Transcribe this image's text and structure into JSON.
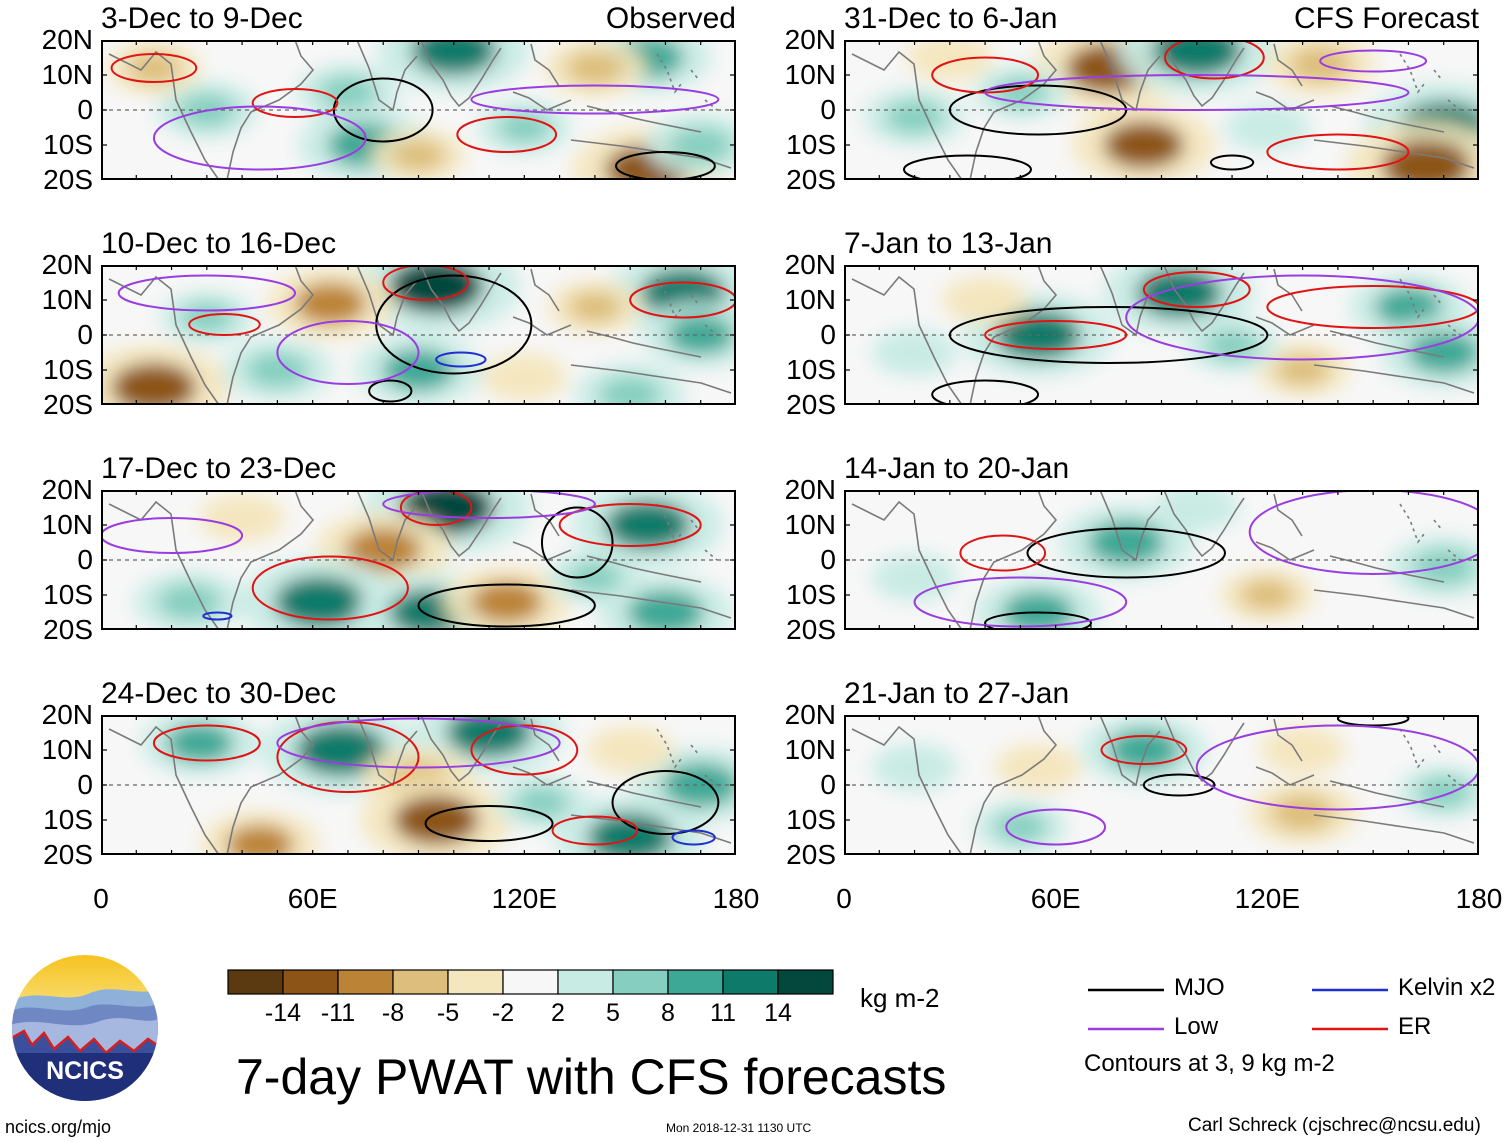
{
  "chart_data": {
    "type": "heatmap",
    "title": "7-day PWAT with CFS forecasts",
    "units": "kg m-2",
    "x_axis": {
      "range": [
        0,
        180
      ],
      "ticks": [
        "0",
        "60E",
        "120E",
        "180"
      ]
    },
    "y_axis": {
      "range": [
        -20,
        20
      ],
      "ticks": [
        "20N",
        "10N",
        "0",
        "10S",
        "20S"
      ]
    },
    "colorbar": {
      "colors": [
        "#5b3a12",
        "#8c5416",
        "#bb8336",
        "#ddbe7c",
        "#f4e6bd",
        "#f7f7f7",
        "#c8ebe4",
        "#86cfc0",
        "#3ea896",
        "#0e7a6a",
        "#04473d"
      ],
      "labels": [
        "-14",
        "-11",
        "-8",
        "-5",
        "-2",
        "2",
        "5",
        "8",
        "11",
        "14"
      ]
    },
    "panels": [
      {
        "period": "3-Dec to 9-Dec",
        "source": "Observed",
        "blobs": [
          {
            "lon": 75,
            "lat": -10,
            "v": 10
          },
          {
            "lon": 100,
            "lat": 17,
            "v": 12
          },
          {
            "lon": 155,
            "lat": 15,
            "v": 9
          },
          {
            "lon": 30,
            "lat": 0,
            "v": 6
          },
          {
            "lon": 70,
            "lat": 5,
            "v": 6
          },
          {
            "lon": 140,
            "lat": 12,
            "v": -6
          },
          {
            "lon": 90,
            "lat": -13,
            "v": -5
          },
          {
            "lon": 155,
            "lat": -17,
            "v": -12
          },
          {
            "lon": 170,
            "lat": -10,
            "v": 7
          },
          {
            "lon": 120,
            "lat": -5,
            "v": 5
          },
          {
            "lon": 15,
            "lat": 12,
            "v": -5
          }
        ],
        "contours": [
          {
            "type": "MJO",
            "lon": 80,
            "lat": 0,
            "rx": 14,
            "ry": 9
          },
          {
            "type": "MJO",
            "lon": 160,
            "lat": -16,
            "rx": 14,
            "ry": 4
          },
          {
            "type": "ER",
            "lon": 15,
            "lat": 12,
            "rx": 12,
            "ry": 4
          },
          {
            "type": "ER",
            "lon": 55,
            "lat": 2,
            "rx": 12,
            "ry": 4
          },
          {
            "type": "ER",
            "lon": 115,
            "lat": -7,
            "rx": 14,
            "ry": 5
          },
          {
            "type": "Low",
            "lon": 45,
            "lat": -8,
            "rx": 30,
            "ry": 9
          },
          {
            "type": "Low",
            "lon": 140,
            "lat": 3,
            "rx": 35,
            "ry": 4
          }
        ]
      },
      {
        "period": "10-Dec to 16-Dec",
        "source": "",
        "blobs": [
          {
            "lon": 95,
            "lat": 14,
            "v": 14
          },
          {
            "lon": 165,
            "lat": 12,
            "v": 12
          },
          {
            "lon": 65,
            "lat": 9,
            "v": -9
          },
          {
            "lon": 15,
            "lat": -15,
            "v": -12
          },
          {
            "lon": 50,
            "lat": -10,
            "v": 7
          },
          {
            "lon": 90,
            "lat": -10,
            "v": 9
          },
          {
            "lon": 170,
            "lat": 0,
            "v": 8
          },
          {
            "lon": 140,
            "lat": 8,
            "v": -5
          },
          {
            "lon": 120,
            "lat": -12,
            "v": -4
          },
          {
            "lon": 30,
            "lat": 5,
            "v": 5
          },
          {
            "lon": 150,
            "lat": -17,
            "v": 7
          }
        ],
        "contours": [
          {
            "type": "MJO",
            "lon": 100,
            "lat": 3,
            "rx": 22,
            "ry": 14
          },
          {
            "type": "MJO",
            "lon": 82,
            "lat": -16,
            "rx": 6,
            "ry": 3
          },
          {
            "type": "ER",
            "lon": 92,
            "lat": 15,
            "rx": 12,
            "ry": 5
          },
          {
            "type": "ER",
            "lon": 165,
            "lat": 10,
            "rx": 15,
            "ry": 5
          },
          {
            "type": "ER",
            "lon": 35,
            "lat": 3,
            "rx": 10,
            "ry": 3
          },
          {
            "type": "Low",
            "lon": 30,
            "lat": 12,
            "rx": 25,
            "ry": 5
          },
          {
            "type": "Low",
            "lon": 70,
            "lat": -5,
            "rx": 20,
            "ry": 9
          },
          {
            "type": "Kelvin x2",
            "lon": 102,
            "lat": -7,
            "rx": 7,
            "ry": 2
          }
        ]
      },
      {
        "period": "17-Dec to 23-Dec",
        "source": "",
        "blobs": [
          {
            "lon": 98,
            "lat": 15,
            "v": 14
          },
          {
            "lon": 155,
            "lat": 10,
            "v": 12
          },
          {
            "lon": 80,
            "lat": 3,
            "v": -10
          },
          {
            "lon": 62,
            "lat": -12,
            "v": 13
          },
          {
            "lon": 93,
            "lat": -15,
            "v": 11
          },
          {
            "lon": 115,
            "lat": -12,
            "v": -9
          },
          {
            "lon": 160,
            "lat": -15,
            "v": 10
          },
          {
            "lon": 25,
            "lat": -12,
            "v": 7
          },
          {
            "lon": 140,
            "lat": -5,
            "v": 5
          },
          {
            "lon": 40,
            "lat": 12,
            "v": -4
          }
        ],
        "contours": [
          {
            "type": "MJO",
            "lon": 115,
            "lat": -13,
            "rx": 25,
            "ry": 6
          },
          {
            "type": "MJO",
            "lon": 135,
            "lat": 5,
            "rx": 10,
            "ry": 10
          },
          {
            "type": "ER",
            "lon": 65,
            "lat": -8,
            "rx": 22,
            "ry": 9
          },
          {
            "type": "ER",
            "lon": 150,
            "lat": 10,
            "rx": 20,
            "ry": 6
          },
          {
            "type": "ER",
            "lon": 95,
            "lat": 15,
            "rx": 10,
            "ry": 5
          },
          {
            "type": "Low",
            "lon": 20,
            "lat": 7,
            "rx": 20,
            "ry": 5
          },
          {
            "type": "Low",
            "lon": 110,
            "lat": 16,
            "rx": 30,
            "ry": 4
          },
          {
            "type": "Kelvin x2",
            "lon": 33,
            "lat": -16,
            "rx": 4,
            "ry": 1
          }
        ]
      },
      {
        "period": "24-Dec to 30-Dec",
        "source": "",
        "blobs": [
          {
            "lon": 68,
            "lat": 10,
            "v": 13
          },
          {
            "lon": 110,
            "lat": 15,
            "v": 12
          },
          {
            "lon": 28,
            "lat": 12,
            "v": 8
          },
          {
            "lon": 90,
            "lat": 2,
            "v": -7
          },
          {
            "lon": 95,
            "lat": -10,
            "v": -12
          },
          {
            "lon": 150,
            "lat": -15,
            "v": 12
          },
          {
            "lon": 170,
            "lat": 0,
            "v": 10
          },
          {
            "lon": 45,
            "lat": -17,
            "v": -8
          },
          {
            "lon": 125,
            "lat": -5,
            "v": 5
          },
          {
            "lon": 150,
            "lat": 10,
            "v": -4
          }
        ],
        "contours": [
          {
            "type": "MJO",
            "lon": 110,
            "lat": -11,
            "rx": 18,
            "ry": 5
          },
          {
            "type": "MJO",
            "lon": 160,
            "lat": -5,
            "rx": 15,
            "ry": 9
          },
          {
            "type": "ER",
            "lon": 70,
            "lat": 8,
            "rx": 20,
            "ry": 10
          },
          {
            "type": "ER",
            "lon": 30,
            "lat": 12,
            "rx": 15,
            "ry": 5
          },
          {
            "type": "ER",
            "lon": 120,
            "lat": 10,
            "rx": 15,
            "ry": 7
          },
          {
            "type": "ER",
            "lon": 140,
            "lat": -13,
            "rx": 12,
            "ry": 4
          },
          {
            "type": "Low",
            "lon": 90,
            "lat": 12,
            "rx": 40,
            "ry": 7
          },
          {
            "type": "Kelvin x2",
            "lon": 168,
            "lat": -15,
            "rx": 6,
            "ry": 2
          }
        ]
      },
      {
        "period": "31-Dec to 6-Jan",
        "source": "CFS Forecast",
        "blobs": [
          {
            "lon": 75,
            "lat": 12,
            "v": -12
          },
          {
            "lon": 100,
            "lat": 17,
            "v": 13
          },
          {
            "lon": 170,
            "lat": -5,
            "v": 13
          },
          {
            "lon": 85,
            "lat": -10,
            "v": -11
          },
          {
            "lon": 165,
            "lat": -16,
            "v": -13
          },
          {
            "lon": 135,
            "lat": 13,
            "v": -7
          },
          {
            "lon": 20,
            "lat": -2,
            "v": 6
          },
          {
            "lon": 50,
            "lat": 5,
            "v": 5
          },
          {
            "lon": 120,
            "lat": -5,
            "v": 4
          },
          {
            "lon": 30,
            "lat": 15,
            "v": -4
          }
        ],
        "contours": [
          {
            "type": "MJO",
            "lon": 55,
            "lat": 0,
            "rx": 25,
            "ry": 7
          },
          {
            "type": "MJO",
            "lon": 35,
            "lat": -17,
            "rx": 18,
            "ry": 4
          },
          {
            "type": "MJO",
            "lon": 110,
            "lat": -15,
            "rx": 6,
            "ry": 2
          },
          {
            "type": "ER",
            "lon": 105,
            "lat": 15,
            "rx": 14,
            "ry": 6
          },
          {
            "type": "ER",
            "lon": 40,
            "lat": 10,
            "rx": 15,
            "ry": 5
          },
          {
            "type": "ER",
            "lon": 140,
            "lat": -12,
            "rx": 20,
            "ry": 5
          },
          {
            "type": "Low",
            "lon": 100,
            "lat": 5,
            "rx": 60,
            "ry": 5
          },
          {
            "type": "Low",
            "lon": 150,
            "lat": 14,
            "rx": 15,
            "ry": 3
          }
        ]
      },
      {
        "period": "7-Jan to 13-Jan",
        "source": "",
        "blobs": [
          {
            "lon": 55,
            "lat": 0,
            "v": 12
          },
          {
            "lon": 95,
            "lat": 12,
            "v": 12
          },
          {
            "lon": 160,
            "lat": 8,
            "v": 8
          },
          {
            "lon": 170,
            "lat": -5,
            "v": 9
          },
          {
            "lon": 130,
            "lat": -10,
            "v": -5
          },
          {
            "lon": 40,
            "lat": 10,
            "v": -4
          },
          {
            "lon": 20,
            "lat": -5,
            "v": 4
          },
          {
            "lon": 110,
            "lat": -3,
            "v": 5
          }
        ],
        "contours": [
          {
            "type": "MJO",
            "lon": 75,
            "lat": 0,
            "rx": 45,
            "ry": 8
          },
          {
            "type": "MJO",
            "lon": 40,
            "lat": -17,
            "rx": 15,
            "ry": 4
          },
          {
            "type": "ER",
            "lon": 60,
            "lat": 0,
            "rx": 20,
            "ry": 4
          },
          {
            "type": "ER",
            "lon": 100,
            "lat": 13,
            "rx": 15,
            "ry": 5
          },
          {
            "type": "ER",
            "lon": 150,
            "lat": 8,
            "rx": 30,
            "ry": 6
          },
          {
            "type": "Low",
            "lon": 130,
            "lat": 5,
            "rx": 50,
            "ry": 12
          }
        ]
      },
      {
        "period": "14-Jan to 20-Jan",
        "source": "",
        "blobs": [
          {
            "lon": 80,
            "lat": 5,
            "v": 10
          },
          {
            "lon": 55,
            "lat": -15,
            "v": 9
          },
          {
            "lon": 170,
            "lat": -2,
            "v": 7
          },
          {
            "lon": 120,
            "lat": -10,
            "v": -5
          },
          {
            "lon": 20,
            "lat": -5,
            "v": 4
          },
          {
            "lon": 100,
            "lat": 15,
            "v": 4
          }
        ],
        "contours": [
          {
            "type": "MJO",
            "lon": 80,
            "lat": 2,
            "rx": 28,
            "ry": 7
          },
          {
            "type": "MJO",
            "lon": 55,
            "lat": -18,
            "rx": 15,
            "ry": 3
          },
          {
            "type": "ER",
            "lon": 45,
            "lat": 2,
            "rx": 12,
            "ry": 5
          },
          {
            "type": "Low",
            "lon": 50,
            "lat": -12,
            "rx": 30,
            "ry": 7
          },
          {
            "type": "Low",
            "lon": 150,
            "lat": 8,
            "rx": 35,
            "ry": 12
          }
        ]
      },
      {
        "period": "21-Jan to 27-Jan",
        "source": "",
        "blobs": [
          {
            "lon": 85,
            "lat": 10,
            "v": 9
          },
          {
            "lon": 130,
            "lat": -8,
            "v": -7
          },
          {
            "lon": 170,
            "lat": -2,
            "v": 5
          },
          {
            "lon": 50,
            "lat": -12,
            "v": 5
          },
          {
            "lon": 20,
            "lat": 5,
            "v": 4
          },
          {
            "lon": 130,
            "lat": 10,
            "v": -4
          },
          {
            "lon": 55,
            "lat": 5,
            "v": -4
          }
        ],
        "contours": [
          {
            "type": "MJO",
            "lon": 95,
            "lat": 0,
            "rx": 10,
            "ry": 3
          },
          {
            "type": "MJO",
            "lon": 150,
            "lat": 19,
            "rx": 10,
            "ry": 2
          },
          {
            "type": "ER",
            "lon": 85,
            "lat": 10,
            "rx": 12,
            "ry": 4
          },
          {
            "type": "Low",
            "lon": 60,
            "lat": -12,
            "rx": 14,
            "ry": 5
          },
          {
            "type": "Low",
            "lon": 140,
            "lat": 5,
            "rx": 40,
            "ry": 12
          }
        ]
      }
    ],
    "legend": {
      "items": [
        {
          "label": "MJO",
          "color": "#000000"
        },
        {
          "label": "Kelvin x2",
          "color": "#1f2fd0"
        },
        {
          "label": "Low",
          "color": "#9a3de0"
        },
        {
          "label": "ER",
          "color": "#e01414"
        }
      ],
      "note": "Contours at 3, 9 kg m-2"
    }
  },
  "footer": {
    "logo_text": "NCICS",
    "url": "ncics.org/mjo",
    "timestamp": "Mon 2018-12-31 1130 UTC",
    "credit": "Carl Schreck (cjschrec@ncsu.edu)"
  }
}
